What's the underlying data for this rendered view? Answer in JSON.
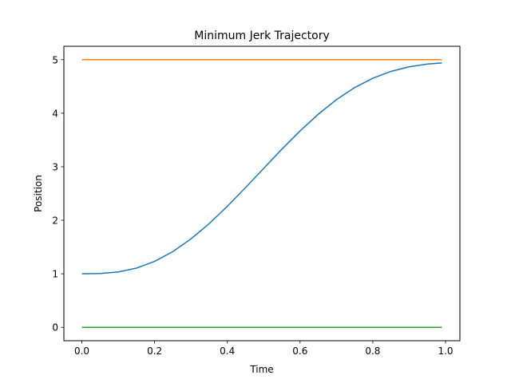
{
  "chart_data": {
    "type": "line",
    "title": "Minimum Jerk Trajectory",
    "xlabel": "Time",
    "ylabel": "Position",
    "xlim": [
      -0.0495,
      1.0395
    ],
    "ylim": [
      -0.25,
      5.25
    ],
    "xticks": [
      0.0,
      0.2,
      0.4,
      0.6,
      0.8,
      1.0
    ],
    "yticks": [
      0,
      1,
      2,
      3,
      4,
      5
    ],
    "xtick_labels": [
      "0.0",
      "0.2",
      "0.4",
      "0.6",
      "0.8",
      "1.0"
    ],
    "ytick_labels": [
      "0",
      "1",
      "2",
      "3",
      "4",
      "5"
    ],
    "grid": false,
    "legend": false,
    "x": [
      0.0,
      0.05,
      0.1,
      0.15,
      0.2,
      0.25,
      0.3,
      0.35,
      0.4,
      0.45,
      0.5,
      0.55,
      0.6,
      0.65,
      0.7,
      0.75,
      0.8,
      0.85,
      0.9,
      0.95,
      0.99
    ],
    "series": [
      {
        "color": "#1f77b4",
        "values": [
          1.0,
          1.005,
          1.034,
          1.106,
          1.232,
          1.414,
          1.652,
          1.937,
          2.261,
          2.61,
          2.97,
          3.328,
          3.669,
          3.981,
          4.253,
          4.478,
          4.653,
          4.781,
          4.867,
          4.919,
          4.939
        ]
      },
      {
        "color": "#ff7f0e",
        "values": [
          5,
          5,
          5,
          5,
          5,
          5,
          5,
          5,
          5,
          5,
          5,
          5,
          5,
          5,
          5,
          5,
          5,
          5,
          5,
          5,
          5
        ]
      },
      {
        "color": "#2ca02c",
        "values": [
          0,
          0,
          0,
          0,
          0,
          0,
          0,
          0,
          0,
          0,
          0,
          0,
          0,
          0,
          0,
          0,
          0,
          0,
          0,
          0,
          0
        ]
      }
    ]
  }
}
